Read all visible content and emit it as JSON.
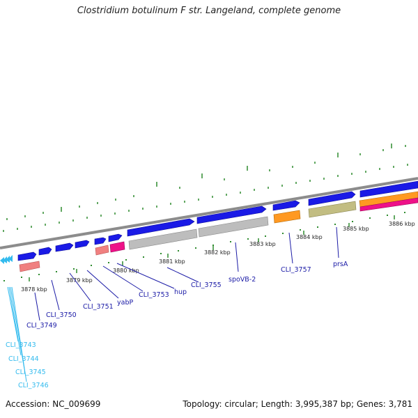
{
  "title": "Clostridium botulinum F str. Langeland, complete genome",
  "footer": {
    "accession": "Accession: NC_009699",
    "summary": "Topology: circular; Length: 3,995,387 bp; Genes: 3,781"
  },
  "scale_labels": [
    {
      "text": "3878 kbp",
      "x": 0.5
    },
    {
      "text": "3879 kbp",
      "x": 1.5
    },
    {
      "text": "3880 kbp",
      "x": 2.5
    },
    {
      "text": "3881 kbp",
      "x": 3.5
    },
    {
      "text": "3882 kbp",
      "x": 4.5
    },
    {
      "text": "3883 kbp",
      "x": 5.5
    },
    {
      "text": "3884 kbp",
      "x": 6.5
    },
    {
      "text": "3885 kbp",
      "x": 7.5
    },
    {
      "text": "3886 kbp",
      "x": 8.5
    }
  ],
  "gene_labels": [
    {
      "text": "CLI_3743",
      "color": "#33bbee"
    },
    {
      "text": "CLI_3744",
      "color": "#33bbee"
    },
    {
      "text": "CLI_3745",
      "color": "#33bbee"
    },
    {
      "text": "CLI_3746",
      "color": "#33bbee"
    },
    {
      "text": "CLI_3749",
      "color": "#1a1aa6"
    },
    {
      "text": "CLI_3750",
      "color": "#1a1aa6"
    },
    {
      "text": "CLI_3751",
      "color": "#1a1aa6"
    },
    {
      "text": "yabP",
      "color": "#1a1aa6"
    },
    {
      "text": "CLI_3753",
      "color": "#1a1aa6"
    },
    {
      "text": "hup",
      "color": "#1a1aa6"
    },
    {
      "text": "CLI_3755",
      "color": "#1a1aa6"
    },
    {
      "text": "spoVB-2",
      "color": "#1a1aa6"
    },
    {
      "text": "CLI_3757",
      "color": "#1a1aa6"
    },
    {
      "text": "prsA",
      "color": "#1a1aa6"
    }
  ],
  "colors": {
    "backbone": "#8c8c8c",
    "gene_forward": "#1a1ae6",
    "small_genes": "#33bbee",
    "tick": "#2e8b2e",
    "pink": "#f08080",
    "magenta": "#ee1188",
    "gray_feature": "#bdbdbd",
    "orange": "#ff9922",
    "olive": "#c2bd82"
  }
}
